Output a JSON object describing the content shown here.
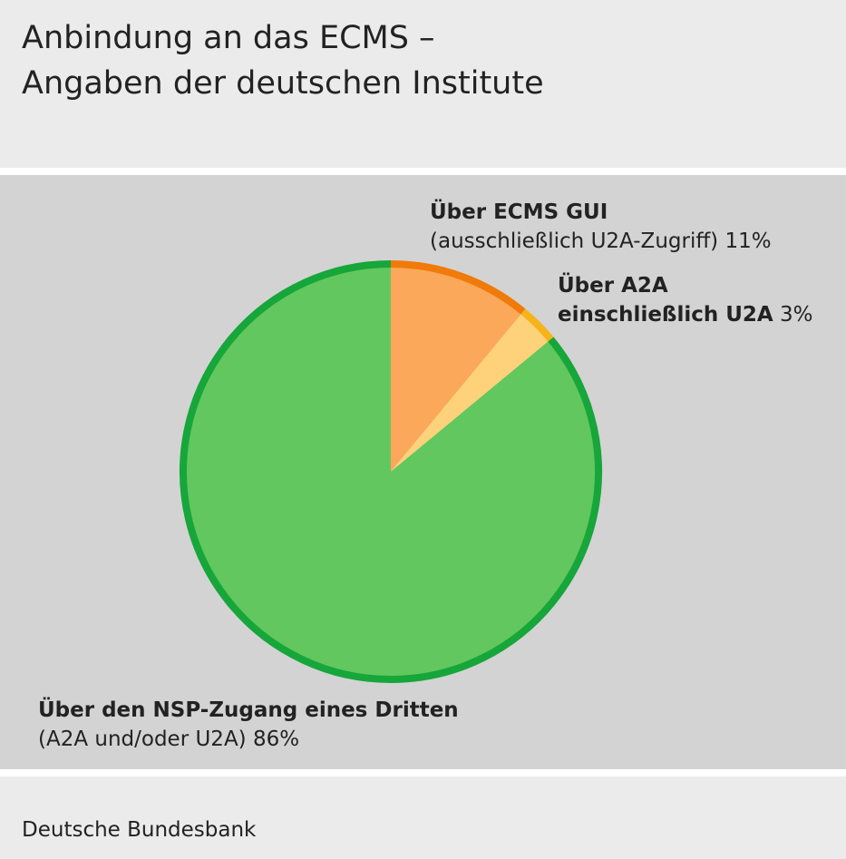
{
  "chart_data": {
    "type": "pie",
    "title": [
      "Anbindung an das ECMS –",
      "Angaben der deutschen Institute"
    ],
    "categories": [
      "Über ECMS GUI",
      "Über A2A",
      "Über den NSP-Zugang eines Dritten"
    ],
    "details": [
      "(ausschließlich U2A-Zugriff)",
      "einschließlich U2A",
      "(A2A und/oder U2A)"
    ],
    "values": [
      11,
      3,
      86
    ],
    "value_labels": [
      "11%",
      "3%",
      "86%"
    ],
    "colors": [
      "#fba85a",
      "#fdd27a",
      "#62c75e"
    ],
    "edge_colors": [
      "#f07a0a",
      "#f6b31a",
      "#16a63a"
    ],
    "source": "Deutsche Bundesbank"
  }
}
